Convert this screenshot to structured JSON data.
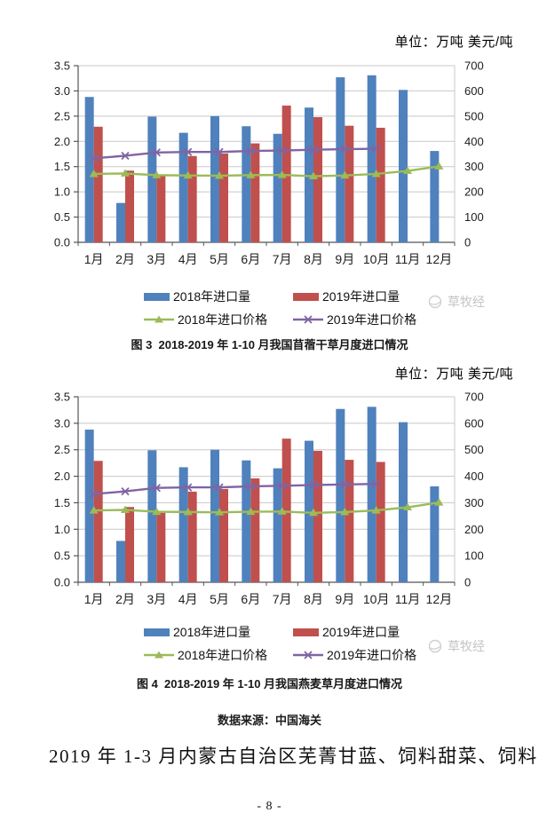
{
  "page": {
    "data_source": "数据来源：中国海关",
    "body_text": "2019 年 1-3 月内蒙古自治区芜菁甘蓝、饲料甜菜、饲料",
    "page_number": "- 8 -"
  },
  "watermark": {
    "text": "草牧经"
  },
  "colors": {
    "volume_2018": "#4F81BD",
    "volume_2019": "#C0504D",
    "price_2018": "#9BBB59",
    "price_2019": "#8064A2",
    "gridline": "#C8C8C8",
    "axis": "#555555"
  },
  "chart_data": [
    {
      "type": "bar+line",
      "title": "图 3  2018-2019 年 1-10 月我国苜蓿干草月度进口情况",
      "unit_label": "单位：万吨 美元/吨",
      "categories": [
        "1月",
        "2月",
        "3月",
        "4月",
        "5月",
        "6月",
        "7月",
        "8月",
        "9月",
        "10月",
        "11月",
        "12月"
      ],
      "ylim_left": [
        0,
        3.5
      ],
      "ylim_right": [
        0,
        700
      ],
      "yticks_left": [
        "0.0",
        "0.5",
        "1.0",
        "1.5",
        "2.0",
        "2.5",
        "3.0",
        "3.5"
      ],
      "yticks_right": [
        "0",
        "100",
        "200",
        "300",
        "400",
        "500",
        "600",
        "700"
      ],
      "grid": true,
      "legend_position": "bottom",
      "series": [
        {
          "name": "2018年进口量",
          "type": "bar",
          "axis": "left",
          "color": "#4F81BD",
          "values": [
            2.88,
            0.78,
            2.49,
            2.17,
            2.5,
            2.3,
            2.15,
            2.67,
            3.27,
            3.31,
            3.02,
            1.81
          ]
        },
        {
          "name": "2019年进口量",
          "type": "bar",
          "axis": "left",
          "color": "#C0504D",
          "values": [
            2.29,
            1.42,
            1.31,
            1.71,
            1.76,
            1.96,
            2.71,
            2.48,
            2.31,
            2.27,
            null,
            null
          ]
        },
        {
          "name": "2018年进口价格",
          "type": "line",
          "marker": "triangle",
          "axis": "right",
          "color": "#9BBB59",
          "values": [
            271,
            273,
            266,
            265,
            264,
            266,
            267,
            262,
            265,
            271,
            283,
            301
          ]
        },
        {
          "name": "2019年进口价格",
          "type": "line",
          "marker": "x",
          "axis": "right",
          "color": "#8064A2",
          "values": [
            333,
            343,
            356,
            358,
            358,
            362,
            364,
            367,
            369,
            371,
            null,
            null
          ]
        }
      ]
    },
    {
      "type": "bar+line",
      "title": "图 4  2018-2019 年 1-10 月我国燕麦草月度进口情况",
      "unit_label": "单位：万吨 美元/吨",
      "categories": [
        "1月",
        "2月",
        "3月",
        "4月",
        "5月",
        "6月",
        "7月",
        "8月",
        "9月",
        "10月",
        "11月",
        "12月"
      ],
      "ylim_left": [
        0,
        3.5
      ],
      "ylim_right": [
        0,
        700
      ],
      "yticks_left": [
        "0.0",
        "0.5",
        "1.0",
        "1.5",
        "2.0",
        "2.5",
        "3.0",
        "3.5"
      ],
      "yticks_right": [
        "0",
        "100",
        "200",
        "300",
        "400",
        "500",
        "600",
        "700"
      ],
      "grid": true,
      "legend_position": "bottom",
      "series": [
        {
          "name": "2018年进口量",
          "type": "bar",
          "axis": "left",
          "color": "#4F81BD",
          "values": [
            2.88,
            0.78,
            2.49,
            2.17,
            2.5,
            2.3,
            2.15,
            2.67,
            3.27,
            3.31,
            3.02,
            1.81
          ]
        },
        {
          "name": "2019年进口量",
          "type": "bar",
          "axis": "left",
          "color": "#C0504D",
          "values": [
            2.29,
            1.42,
            1.31,
            1.71,
            1.76,
            1.96,
            2.71,
            2.48,
            2.31,
            2.27,
            null,
            null
          ]
        },
        {
          "name": "2018年进口价格",
          "type": "line",
          "marker": "triangle",
          "axis": "right",
          "color": "#9BBB59",
          "values": [
            271,
            273,
            266,
            265,
            264,
            266,
            267,
            262,
            265,
            271,
            283,
            301
          ]
        },
        {
          "name": "2019年进口价格",
          "type": "line",
          "marker": "x",
          "axis": "right",
          "color": "#8064A2",
          "values": [
            333,
            343,
            356,
            358,
            358,
            362,
            364,
            367,
            369,
            371,
            null,
            null
          ]
        }
      ]
    }
  ]
}
